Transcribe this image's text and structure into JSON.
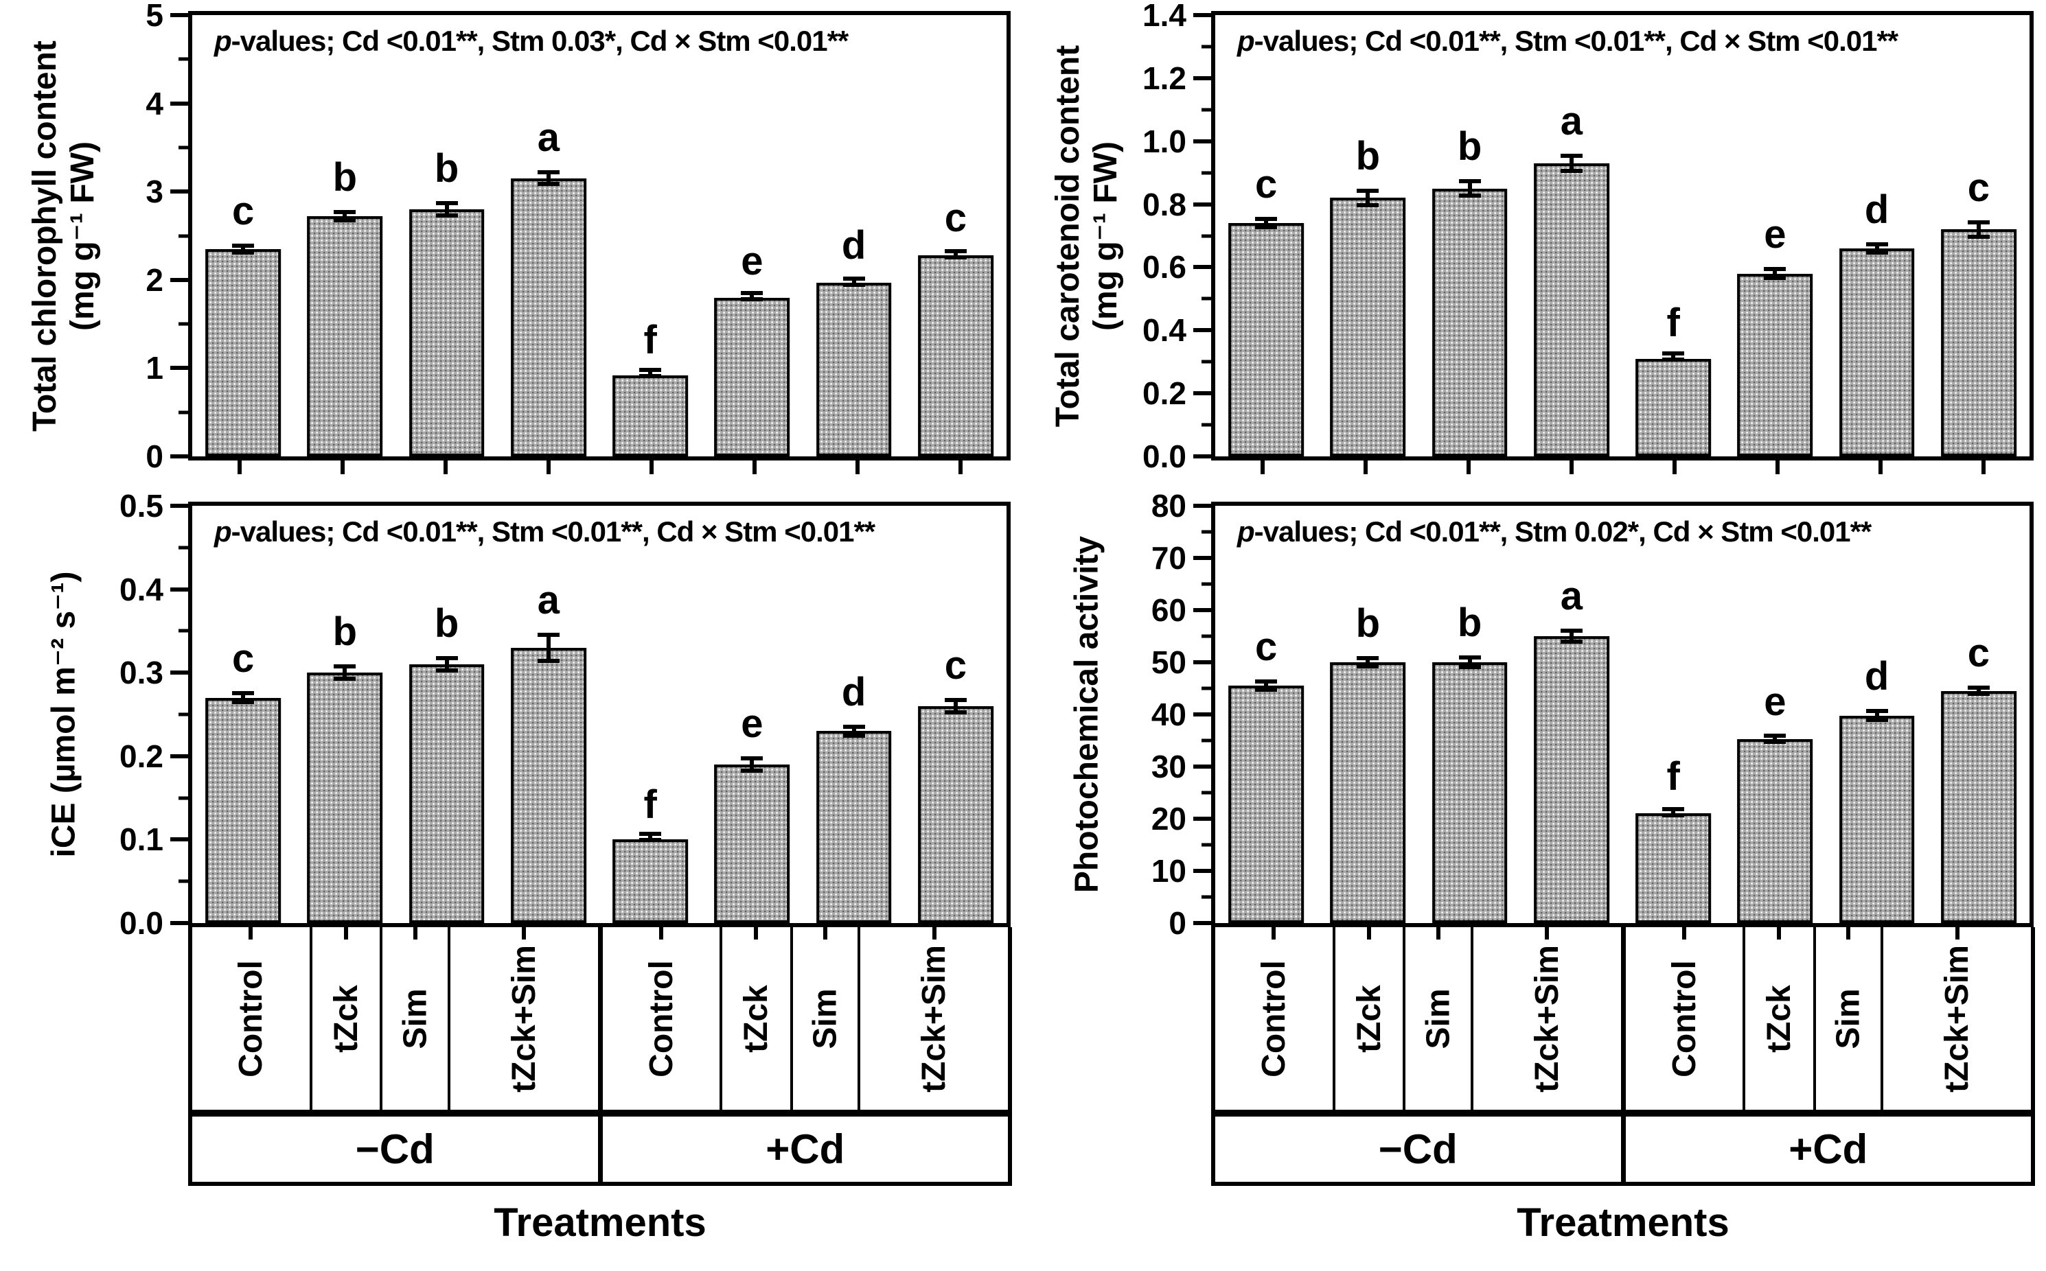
{
  "figure": {
    "background": "#ffffff",
    "text_color": "#000000",
    "bar_fill": "#aaaaaa",
    "bar_border": "#000000",
    "x_axis": {
      "categories": [
        "Control",
        "tZck",
        "Sim",
        "tZck+Sim",
        "Control",
        "tZck",
        "Sim",
        "tZck+Sim"
      ],
      "groups": [
        "−Cd",
        "+Cd"
      ],
      "title": "Treatments"
    }
  },
  "chart_data": [
    {
      "type": "bar",
      "panel": "top-left",
      "ylabel_lines": [
        "Total chlorophyll content",
        "(mg g⁻¹ FW)"
      ],
      "p_label": {
        "italic": "p",
        "text": "-values; Cd <0.01**, Stm 0.03*, Cd × Stm <0.01**"
      },
      "ylim": [
        0,
        5
      ],
      "ytick_step": 1,
      "yminor_step": 0.5,
      "ydecimals": 0,
      "categories": [
        "Control",
        "tZck",
        "Sim",
        "tZck+Sim",
        "Control",
        "tZck",
        "Sim",
        "tZck+Sim"
      ],
      "group_of_bars": [
        "−Cd",
        "−Cd",
        "−Cd",
        "−Cd",
        "+Cd",
        "+Cd",
        "+Cd",
        "+Cd"
      ],
      "values": [
        2.35,
        2.72,
        2.8,
        3.15,
        0.92,
        1.8,
        1.97,
        2.28
      ],
      "errors": [
        0.06,
        0.07,
        0.09,
        0.09,
        0.03,
        0.04,
        0.05,
        0.05
      ],
      "sig_letters": [
        "c",
        "b",
        "b",
        "a",
        "f",
        "e",
        "d",
        "c"
      ],
      "grid": false,
      "legend": "none"
    },
    {
      "type": "bar",
      "panel": "top-right",
      "ylabel_lines": [
        "Total carotenoid content",
        "(mg g⁻¹ FW)"
      ],
      "p_label": {
        "italic": "p",
        "text": "-values; Cd <0.01**, Stm <0.01**, Cd × Stm <0.01**"
      },
      "ylim": [
        0,
        1.4
      ],
      "ytick_step": 0.2,
      "yminor_step": 0.1,
      "ydecimals": 1,
      "categories": [
        "Control",
        "tZck",
        "Sim",
        "tZck+Sim",
        "Control",
        "tZck",
        "Sim",
        "tZck+Sim"
      ],
      "group_of_bars": [
        "−Cd",
        "−Cd",
        "−Cd",
        "−Cd",
        "+Cd",
        "+Cd",
        "+Cd",
        "+Cd"
      ],
      "values": [
        0.74,
        0.82,
        0.85,
        0.93,
        0.31,
        0.58,
        0.66,
        0.72
      ],
      "errors": [
        0.02,
        0.03,
        0.03,
        0.03,
        0.01,
        0.02,
        0.02,
        0.03
      ],
      "sig_letters": [
        "c",
        "b",
        "b",
        "a",
        "f",
        "e",
        "d",
        "c"
      ],
      "grid": false,
      "legend": "none"
    },
    {
      "type": "bar",
      "panel": "bottom-left",
      "ylabel_lines": [
        "iCE (µmol m⁻² s⁻¹)"
      ],
      "p_label": {
        "italic": "p",
        "text": "-values; Cd <0.01**, Stm <0.01**, Cd × Stm <0.01**"
      },
      "ylim": [
        0,
        0.5
      ],
      "ytick_step": 0.1,
      "yminor_step": 0.05,
      "ydecimals": 1,
      "categories": [
        "Control",
        "tZck",
        "Sim",
        "tZck+Sim",
        "Control",
        "tZck",
        "Sim",
        "tZck+Sim"
      ],
      "group_of_bars": [
        "−Cd",
        "−Cd",
        "−Cd",
        "−Cd",
        "+Cd",
        "+Cd",
        "+Cd",
        "+Cd"
      ],
      "values": [
        0.27,
        0.3,
        0.31,
        0.33,
        0.1,
        0.19,
        0.23,
        0.26
      ],
      "errors": [
        0.008,
        0.01,
        0.01,
        0.018,
        0.003,
        0.01,
        0.008,
        0.01
      ],
      "sig_letters": [
        "c",
        "b",
        "b",
        "a",
        "f",
        "e",
        "d",
        "c"
      ],
      "grid": false,
      "legend": "none"
    },
    {
      "type": "bar",
      "panel": "bottom-right",
      "ylabel_lines": [
        "Photochemical activity"
      ],
      "p_label": {
        "italic": "p",
        "text": "-values; Cd <0.01**, Stm 0.02*, Cd × Stm <0.01**"
      },
      "ylim": [
        0,
        80
      ],
      "ytick_step": 10,
      "yminor_step": 5,
      "ydecimals": 0,
      "categories": [
        "Control",
        "tZck",
        "Sim",
        "tZck+Sim",
        "Control",
        "tZck",
        "Sim",
        "tZck+Sim"
      ],
      "group_of_bars": [
        "−Cd",
        "−Cd",
        "−Cd",
        "−Cd",
        "+Cd",
        "+Cd",
        "+Cd",
        "+Cd"
      ],
      "values": [
        45.5,
        50,
        50,
        55,
        21,
        35.3,
        39.8,
        44.5
      ],
      "errors": [
        1.2,
        1.2,
        1.3,
        1.5,
        0.8,
        0.9,
        1.2,
        1.0
      ],
      "sig_letters": [
        "c",
        "b",
        "b",
        "a",
        "f",
        "e",
        "d",
        "c"
      ],
      "grid": false,
      "legend": "none"
    }
  ]
}
